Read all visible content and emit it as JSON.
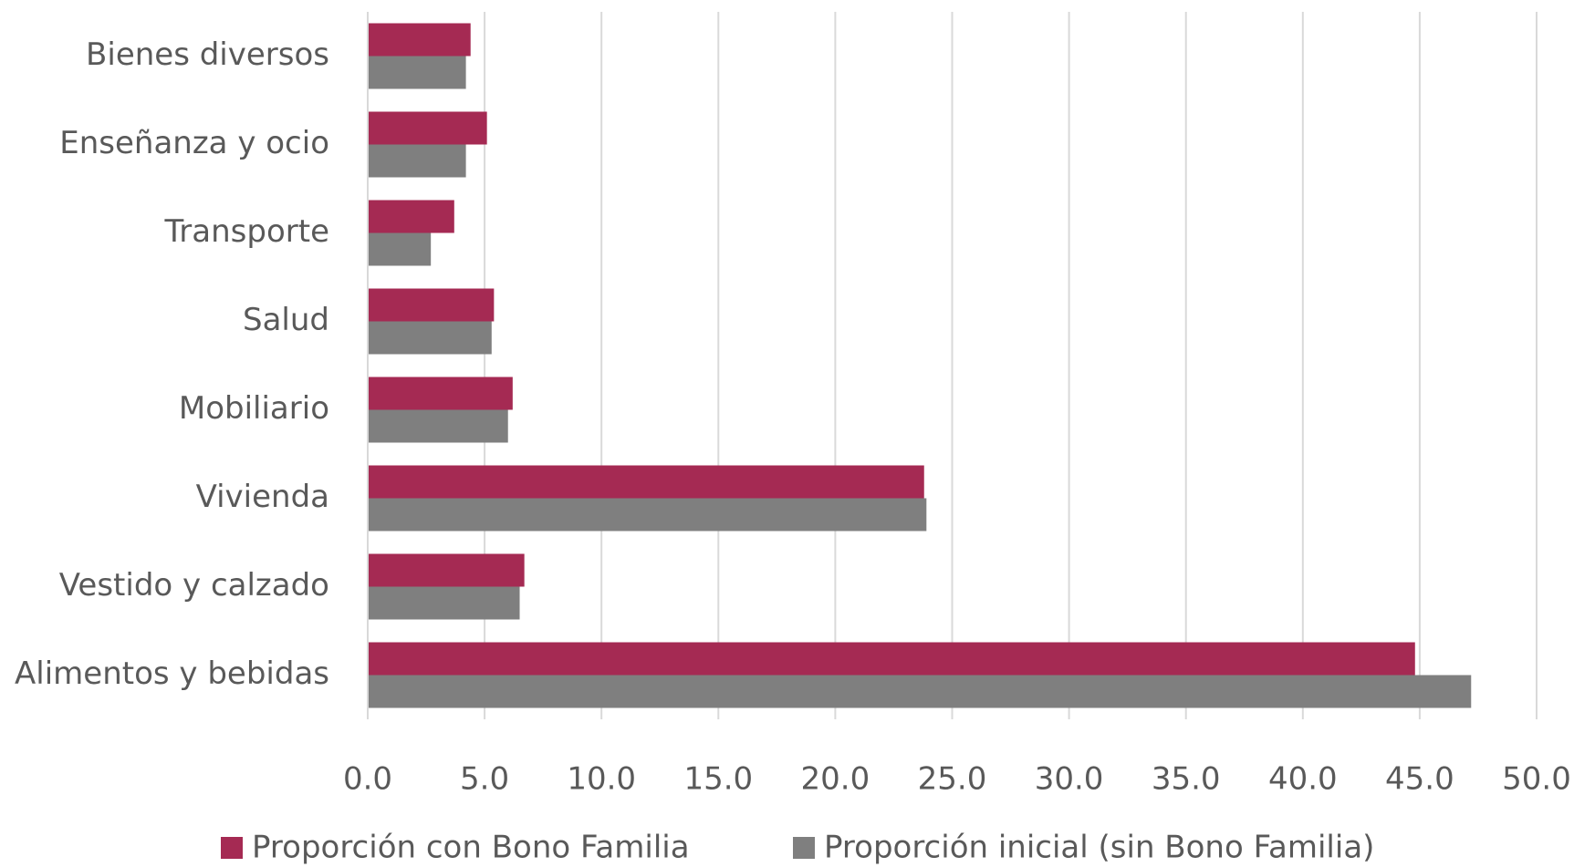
{
  "chart_data": {
    "type": "hbar",
    "categories": [
      "Bienes diversos",
      "Enseñanza y ocio",
      "Transporte",
      "Salud",
      "Mobiliario",
      "Vivienda",
      "Vestido y calzado",
      "Alimentos y bebidas"
    ],
    "series": [
      {
        "name": "Proporción con Bono Familia",
        "color": "#a52a53",
        "values": [
          4.4,
          5.1,
          3.7,
          5.4,
          6.2,
          23.8,
          6.7,
          44.8
        ]
      },
      {
        "name": "Proporción inicial (sin Bono Familia)",
        "color": "#7f7f7f",
        "values": [
          4.2,
          4.2,
          2.7,
          5.3,
          6.0,
          23.9,
          6.5,
          47.2
        ]
      }
    ],
    "xlim": [
      0,
      50
    ],
    "xticks": [
      {
        "value": 0,
        "label": "0.0"
      },
      {
        "value": 5,
        "label": "5.0"
      },
      {
        "value": 10,
        "label": "10.0"
      },
      {
        "value": 15,
        "label": "15.0"
      },
      {
        "value": 20,
        "label": "20.0"
      },
      {
        "value": 25,
        "label": "25.0"
      },
      {
        "value": 30,
        "label": "30.0"
      },
      {
        "value": 35,
        "label": "35.0"
      },
      {
        "value": 40,
        "label": "40.0"
      },
      {
        "value": 45,
        "label": "45.0"
      },
      {
        "value": 50,
        "label": "50.0"
      }
    ],
    "grid": true,
    "legend": "bottom"
  }
}
